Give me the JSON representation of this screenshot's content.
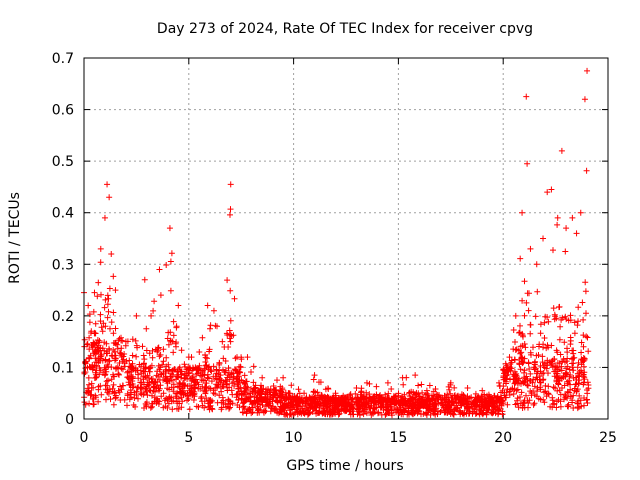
{
  "chart_data": {
    "type": "scatter",
    "title": "Day 273 of 2024, Rate Of TEC Index for receiver cpvg",
    "xlabel": "GPS time / hours",
    "ylabel": "ROTI / TECUs",
    "xlim": [
      0,
      25
    ],
    "ylim": [
      0,
      0.7
    ],
    "xticks": [
      0,
      5,
      10,
      15,
      20,
      25
    ],
    "yticks": [
      0,
      0.1,
      0.2,
      0.3,
      0.4,
      0.5,
      0.6,
      0.7
    ],
    "xtick_labels": [
      "0",
      "5",
      "10",
      "15",
      "20",
      "25"
    ],
    "ytick_labels": [
      "0",
      "0.1",
      "0.2",
      "0.3",
      "0.4",
      "0.5",
      "0.6",
      "0.7"
    ],
    "grid": true,
    "marker": "+",
    "marker_color": "#ff0000",
    "series": [
      {
        "name": "ROTI",
        "peaks": [
          [
            0.0,
            0.245
          ],
          [
            0.2,
            0.22
          ],
          [
            0.5,
            0.245
          ],
          [
            0.8,
            0.33
          ],
          [
            1.0,
            0.39
          ],
          [
            1.1,
            0.455
          ],
          [
            1.2,
            0.43
          ],
          [
            1.3,
            0.32
          ],
          [
            1.5,
            0.25
          ],
          [
            2.0,
            0.15
          ],
          [
            2.5,
            0.2
          ],
          [
            2.9,
            0.27
          ],
          [
            3.2,
            0.2
          ],
          [
            3.6,
            0.29
          ],
          [
            4.1,
            0.37
          ],
          [
            4.5,
            0.22
          ],
          [
            5.0,
            0.12
          ],
          [
            5.5,
            0.13
          ],
          [
            5.9,
            0.22
          ],
          [
            6.2,
            0.21
          ],
          [
            6.6,
            0.15
          ],
          [
            7.0,
            0.455
          ],
          [
            7.3,
            0.12
          ],
          [
            7.8,
            0.12
          ],
          [
            8.5,
            0.08
          ],
          [
            9.5,
            0.08
          ],
          [
            10.5,
            0.05
          ],
          [
            11.0,
            0.085
          ],
          [
            12.0,
            0.05
          ],
          [
            13.0,
            0.06
          ],
          [
            13.5,
            0.07
          ],
          [
            14.5,
            0.07
          ],
          [
            15.2,
            0.08
          ],
          [
            15.8,
            0.085
          ],
          [
            16.5,
            0.065
          ],
          [
            17.5,
            0.07
          ],
          [
            18.3,
            0.06
          ],
          [
            19.0,
            0.055
          ],
          [
            19.8,
            0.07
          ],
          [
            20.3,
            0.12
          ],
          [
            20.6,
            0.2
          ],
          [
            20.9,
            0.4
          ],
          [
            21.1,
            0.625
          ],
          [
            21.3,
            0.33
          ],
          [
            21.6,
            0.3
          ],
          [
            21.9,
            0.35
          ],
          [
            22.1,
            0.44
          ],
          [
            22.3,
            0.445
          ],
          [
            22.6,
            0.39
          ],
          [
            22.8,
            0.52
          ],
          [
            23.0,
            0.37
          ],
          [
            23.3,
            0.39
          ],
          [
            23.5,
            0.36
          ],
          [
            23.7,
            0.4
          ],
          [
            23.9,
            0.62
          ],
          [
            24.0,
            0.675
          ]
        ]
      }
    ]
  }
}
